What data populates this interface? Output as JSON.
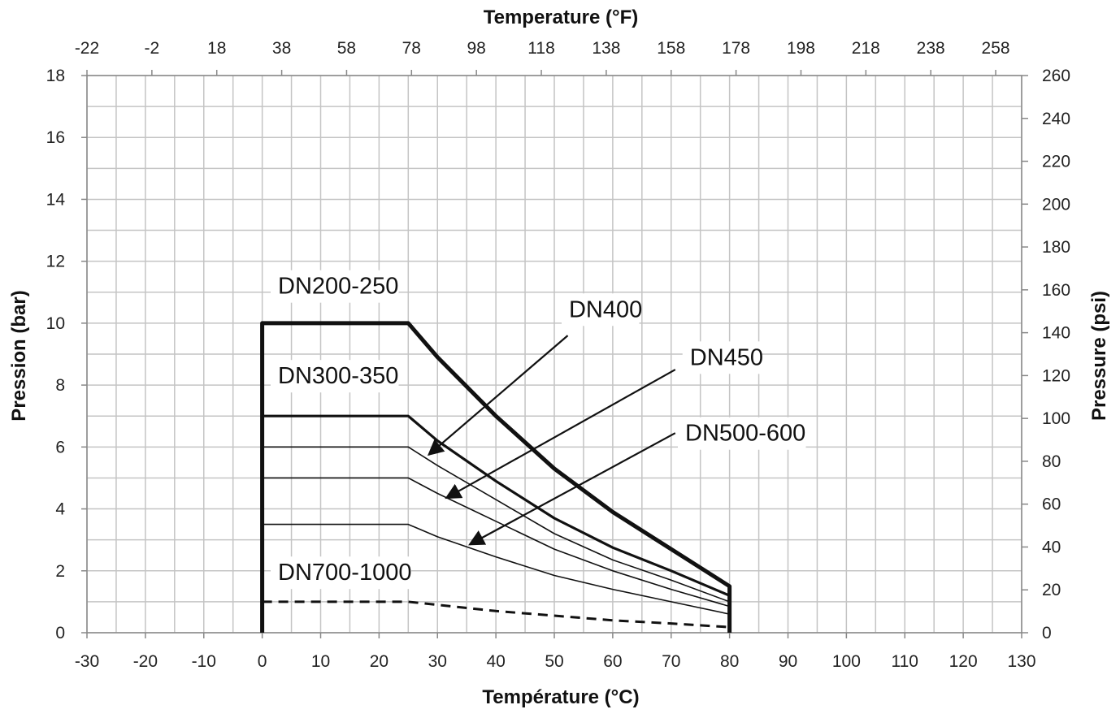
{
  "chart_data": {
    "type": "line",
    "title": "",
    "xlabel": "Température (°C)",
    "x2label": "Temperature (°F)",
    "ylabel": "Pression (bar)",
    "y2label": "Pressure (psi)",
    "xlim": [
      -30,
      130
    ],
    "ylim": [
      0,
      18
    ],
    "x2lim": [
      -22,
      266
    ],
    "y2lim": [
      0,
      260
    ],
    "x_ticks": [
      "-30",
      "-20",
      "-10",
      "0",
      "10",
      "20",
      "30",
      "40",
      "50",
      "60",
      "70",
      "80",
      "90",
      "100",
      "110",
      "120",
      "130"
    ],
    "y_ticks": [
      "0",
      "2",
      "4",
      "6",
      "8",
      "10",
      "12",
      "14",
      "16",
      "18"
    ],
    "x2_ticks": [
      "-22",
      "-2",
      "18",
      "38",
      "58",
      "78",
      "98",
      "118",
      "138",
      "158",
      "178",
      "198",
      "218",
      "238",
      "258"
    ],
    "y2_ticks": [
      "0",
      "20",
      "40",
      "60",
      "80",
      "100",
      "120",
      "140",
      "160",
      "180",
      "200",
      "220",
      "240",
      "260"
    ],
    "grid": true,
    "series": [
      {
        "name": "DN200-250",
        "style": "bold",
        "points": [
          [
            0,
            0
          ],
          [
            0,
            10
          ],
          [
            25,
            10
          ],
          [
            30,
            8.9
          ],
          [
            40,
            7.0
          ],
          [
            50,
            5.3
          ],
          [
            60,
            3.9
          ],
          [
            70,
            2.7
          ],
          [
            80,
            1.5
          ],
          [
            80,
            0
          ]
        ]
      },
      {
        "name": "DN300-350",
        "style": "medium",
        "points": [
          [
            0,
            7
          ],
          [
            25,
            7
          ],
          [
            30,
            6.2
          ],
          [
            40,
            4.9
          ],
          [
            50,
            3.7
          ],
          [
            60,
            2.75
          ],
          [
            70,
            2.0
          ],
          [
            80,
            1.2
          ]
        ]
      },
      {
        "name": "DN400",
        "style": "thin",
        "points": [
          [
            0,
            6
          ],
          [
            25,
            6
          ],
          [
            30,
            5.4
          ],
          [
            40,
            4.3
          ],
          [
            50,
            3.2
          ],
          [
            60,
            2.35
          ],
          [
            70,
            1.7
          ],
          [
            80,
            1.0
          ]
        ]
      },
      {
        "name": "DN450",
        "style": "thin",
        "points": [
          [
            0,
            5
          ],
          [
            25,
            5
          ],
          [
            30,
            4.5
          ],
          [
            40,
            3.6
          ],
          [
            50,
            2.7
          ],
          [
            60,
            2.0
          ],
          [
            70,
            1.4
          ],
          [
            80,
            0.85
          ]
        ]
      },
      {
        "name": "DN500-600",
        "style": "thin",
        "points": [
          [
            0,
            3.5
          ],
          [
            25,
            3.5
          ],
          [
            30,
            3.1
          ],
          [
            40,
            2.45
          ],
          [
            50,
            1.85
          ],
          [
            60,
            1.4
          ],
          [
            70,
            1.0
          ],
          [
            80,
            0.6
          ]
        ]
      },
      {
        "name": "DN700-1000",
        "style": "dashed",
        "points": [
          [
            0,
            1
          ],
          [
            25,
            1
          ],
          [
            30,
            0.9
          ],
          [
            40,
            0.7
          ],
          [
            50,
            0.55
          ],
          [
            60,
            0.4
          ],
          [
            70,
            0.3
          ],
          [
            80,
            0.18
          ]
        ]
      }
    ],
    "annotations": [
      {
        "text": "DN200-250",
        "label_at": [
          2.7,
          10.95
        ]
      },
      {
        "text": "DN300-350",
        "label_at": [
          2.7,
          8.05
        ]
      },
      {
        "text": "DN400",
        "label_at": [
          52.5,
          10.2
        ],
        "arrow_from": [
          52.3,
          9.6
        ],
        "arrow_to": [
          28.5,
          5.75
        ]
      },
      {
        "text": "DN450",
        "label_at": [
          73.2,
          8.65
        ],
        "arrow_from": [
          70.7,
          8.5
        ],
        "arrow_to": [
          31.5,
          4.35
        ]
      },
      {
        "text": "DN500-600",
        "label_at": [
          72.4,
          6.2
        ],
        "arrow_from": [
          70.7,
          6.45
        ],
        "arrow_to": [
          35.5,
          2.85
        ]
      },
      {
        "text": "DN700-1000",
        "label_at": [
          2.7,
          1.7
        ]
      }
    ]
  }
}
